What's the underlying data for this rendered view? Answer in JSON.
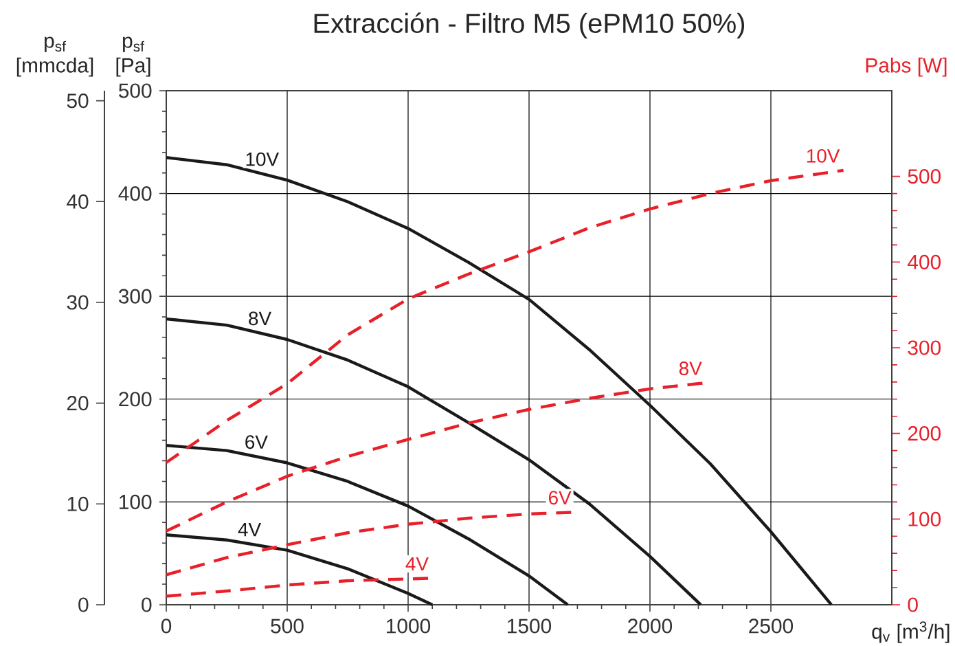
{
  "chart_data": {
    "type": "line",
    "title": "Extracción - Filtro M5 (ePM10 50%)",
    "xlabel": "q$_{v}$ [m$^{3}$/h]",
    "ylabel": "p$_{sf}$ [Pa]",
    "y3label": "p$_{sf}$ [mmcda]",
    "y2label": "Pabs [W]",
    "xlim": [
      0,
      3000
    ],
    "xticks": [
      0,
      500,
      1000,
      1500,
      2000,
      2500
    ],
    "ylim": [
      0,
      500
    ],
    "yticks": [
      0,
      100,
      200,
      300,
      400,
      500
    ],
    "y2lim": [
      0,
      600
    ],
    "y2ticks": [
      0,
      100,
      200,
      300,
      400,
      500
    ],
    "y3lim": [
      0,
      51
    ],
    "y3ticks": [
      0,
      10,
      20,
      30,
      40,
      50
    ],
    "grid": true,
    "series": [
      {
        "name": "10V",
        "color": "#1a1a1a",
        "line_style": "solid",
        "x": [
          0,
          250,
          500,
          750,
          1000,
          1250,
          1500,
          1750,
          2000,
          2250,
          2500,
          2750
        ],
        "values": [
          435,
          428,
          413,
          392,
          366,
          333,
          297,
          248,
          194,
          137,
          71,
          0
        ]
      },
      {
        "name": "8V",
        "color": "#1a1a1a",
        "line_style": "solid",
        "x": [
          0,
          250,
          500,
          750,
          1000,
          1250,
          1500,
          1750,
          2000,
          2210
        ],
        "values": [
          278,
          272,
          258,
          238,
          212,
          177,
          141,
          98,
          47,
          0
        ]
      },
      {
        "name": "6V",
        "color": "#1a1a1a",
        "line_style": "solid",
        "x": [
          0,
          250,
          500,
          750,
          1000,
          1250,
          1500,
          1660
        ],
        "values": [
          155,
          150,
          138,
          120,
          96,
          64,
          28,
          0
        ]
      },
      {
        "name": "4V",
        "color": "#1a1a1a",
        "line_style": "solid",
        "x": [
          0,
          250,
          500,
          750,
          1000,
          1100
        ],
        "values": [
          68,
          63,
          53,
          35,
          11,
          0
        ]
      },
      {
        "name": "10V",
        "color": "#e8202a",
        "line_style": "dashed",
        "axis": "y2",
        "x": [
          0,
          250,
          500,
          750,
          1000,
          1250,
          1500,
          1750,
          2000,
          2250,
          2500,
          2800
        ],
        "values": [
          166,
          215,
          258,
          315,
          357,
          386,
          412,
          440,
          462,
          480,
          495,
          507
        ]
      },
      {
        "name": "8V",
        "color": "#e8202a",
        "line_style": "dashed",
        "axis": "y2",
        "x": [
          0,
          250,
          500,
          750,
          1000,
          1250,
          1500,
          1750,
          2000,
          2230
        ],
        "values": [
          86,
          120,
          150,
          173,
          193,
          212,
          228,
          241,
          252,
          259
        ]
      },
      {
        "name": "6V",
        "color": "#e8202a",
        "line_style": "dashed",
        "axis": "y2",
        "x": [
          0,
          250,
          500,
          750,
          1000,
          1250,
          1500,
          1690
        ],
        "values": [
          35,
          55,
          70,
          84,
          94,
          101,
          106,
          108
        ]
      },
      {
        "name": "4V",
        "color": "#e8202a",
        "line_style": "dashed",
        "axis": "y2",
        "x": [
          0,
          250,
          500,
          750,
          1100
        ],
        "values": [
          10,
          16,
          23,
          28,
          31
        ]
      }
    ]
  }
}
